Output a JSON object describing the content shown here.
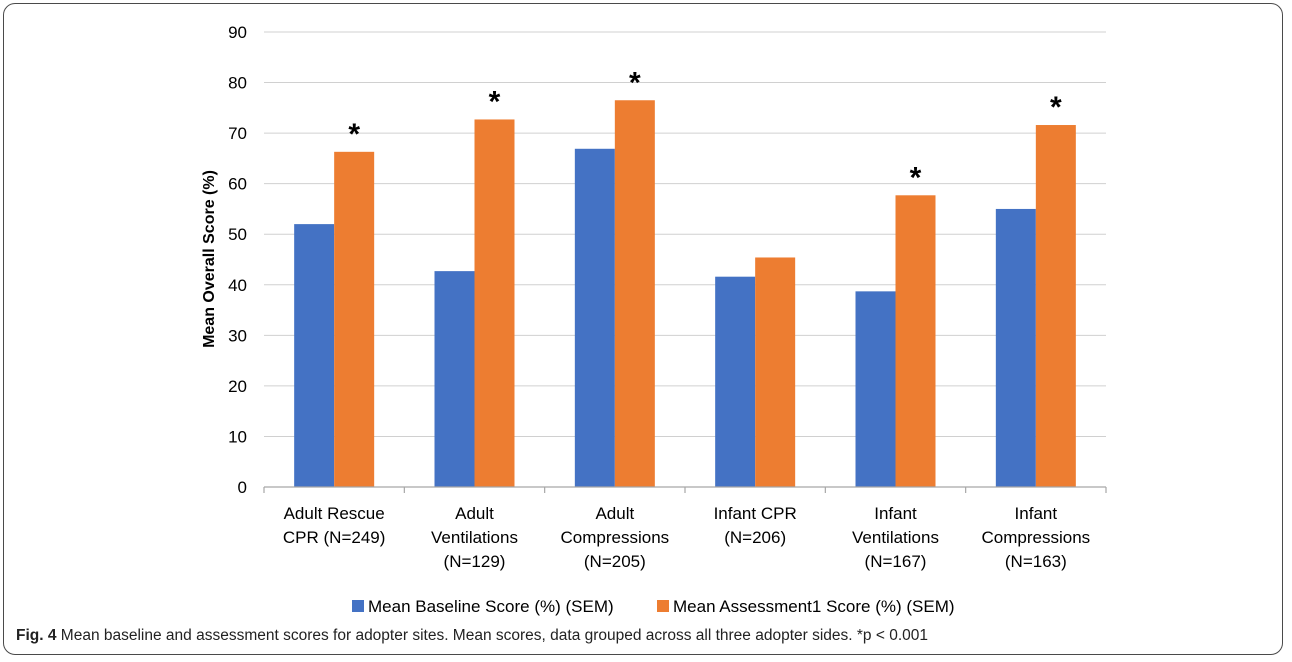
{
  "chart_data": {
    "type": "bar",
    "title": "",
    "xlabel": "",
    "ylabel": "Mean Overall Score (%)",
    "ylim": [
      0,
      90
    ],
    "yticks": [
      "0",
      "10",
      "20",
      "30",
      "40",
      "50",
      "60",
      "70",
      "80",
      "90"
    ],
    "categories": [
      [
        "Adult Rescue",
        "CPR (N=249)"
      ],
      [
        "Adult",
        "Ventilations",
        "(N=129)"
      ],
      [
        "Adult",
        "Compressions",
        "(N=205)"
      ],
      [
        "Infant CPR",
        "(N=206)"
      ],
      [
        "Infant",
        "Ventilations",
        "(N=167)"
      ],
      [
        "Infant",
        "Compressions",
        "(N=163)"
      ]
    ],
    "series": [
      {
        "name": "Mean Baseline Score (%) (SEM)",
        "color": "#4472c4",
        "values": [
          52,
          42.7,
          66.9,
          41.6,
          38.7,
          55
        ]
      },
      {
        "name": "Mean Assessment1 Score (%) (SEM)",
        "color": "#ed7d31",
        "values": [
          66.3,
          72.7,
          76.5,
          45.4,
          57.7,
          71.6
        ]
      }
    ],
    "annotations": [
      "*",
      "*",
      "*",
      "",
      "*",
      "*"
    ],
    "grid": true,
    "legend": "bottom"
  },
  "caption": {
    "label": "Fig. 4",
    "text": " Mean baseline and assessment scores for adopter sites. Mean scores, data grouped across all three adopter sides. *p < 0.001"
  }
}
